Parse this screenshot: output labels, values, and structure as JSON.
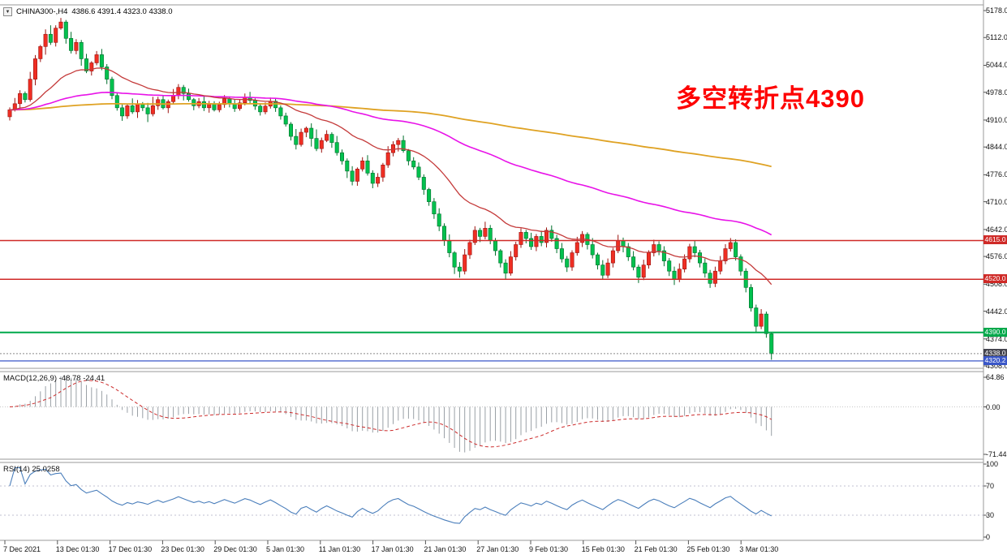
{
  "window": {
    "symbol_timeframe": "CHINA300-,H4",
    "ohlc": "4386.6 4391.4 4323.0 4338.0",
    "dropdown_glyph": "▼"
  },
  "annotation": {
    "text": "多空转折点4390",
    "color": "#fe0000"
  },
  "price_axis": {
    "labels": [
      "5178.0",
      "5112.0",
      "5044.0",
      "4978.0",
      "4910.0",
      "4844.0",
      "4776.0",
      "4710.0",
      "4642.0",
      "4576.0",
      "4508.0",
      "4442.0",
      "4374.0",
      "4308.0"
    ]
  },
  "price_tags": [
    {
      "label": "4615.0",
      "value": 4615.0,
      "color": "#cf2a27"
    },
    {
      "label": "4520.0",
      "value": 4520.0,
      "color": "#cf2a27"
    },
    {
      "label": "4390.0",
      "value": 4390.0,
      "color": "#00a84a"
    },
    {
      "label": "4338.0",
      "value": 4338.0,
      "color": "#45454f"
    },
    {
      "label": "4320.2",
      "value": 4320.2,
      "color": "#3a57c8"
    }
  ],
  "hlines": [
    {
      "price": 4615.0,
      "color": "#cf2a27",
      "width": 1.5,
      "dash": ""
    },
    {
      "price": 4520.0,
      "color": "#cf2a27",
      "width": 1.5,
      "dash": ""
    },
    {
      "price": 4390.0,
      "color": "#00a84a",
      "width": 2,
      "dash": ""
    },
    {
      "price": 4338.0,
      "color": "#8a8a8a",
      "width": 1,
      "dash": "2,2"
    },
    {
      "price": 4320.2,
      "color": "#3a57c8",
      "width": 1.3,
      "dash": ""
    }
  ],
  "panels": {
    "macd": {
      "label": "MACD(12,26,9)",
      "values": "-48.78 -24.41",
      "axis": [
        "64.86",
        "0.00",
        "-71.44"
      ]
    },
    "rsi": {
      "label": "RSI(14)",
      "value": "25.0258",
      "axis": [
        "100",
        "70",
        "30",
        "0"
      ],
      "levels": [
        70,
        30
      ]
    }
  },
  "time_axis": {
    "labels": [
      "7 Dec 2021",
      "13 Dec 01:30",
      "17 Dec 01:30",
      "23 Dec 01:30",
      "29 Dec 01:30",
      "5 Jan 01:30",
      "11 Jan 01:30",
      "17 Jan 01:30",
      "21 Jan 01:30",
      "27 Jan 01:30",
      "9 Feb 01:30",
      "15 Feb 01:30",
      "21 Feb 01:30",
      "25 Feb 01:30",
      "3 Mar 01:30"
    ]
  },
  "chart_data": {
    "type": "candlestick",
    "symbol": "CHINA300-",
    "timeframe": "H4",
    "price_range": [
      4302,
      5192
    ],
    "up_color": "#ef2e23",
    "up_stroke": "#9c1410",
    "down_color": "#00c14e",
    "down_stroke": "#00702c",
    "moving_averages": [
      {
        "type": "EMA",
        "period": 24,
        "color": "#c43a3a",
        "width": 1.3
      },
      {
        "type": "EMA",
        "period": 90,
        "color": "#e813e8",
        "width": 1.6
      },
      {
        "type": "EMA",
        "period": 300,
        "color": "#dfa223",
        "width": 1.8
      }
    ],
    "candles": [
      [
        4918,
        4941,
        4909,
        4935
      ],
      [
        4935,
        4964,
        4931,
        4950
      ],
      [
        4950,
        4983,
        4938,
        4975
      ],
      [
        4975,
        4980,
        4953,
        4960
      ],
      [
        4960,
        5028,
        4955,
        5010
      ],
      [
        5010,
        5069,
        4995,
        5060
      ],
      [
        5060,
        5094,
        5052,
        5090
      ],
      [
        5090,
        5132,
        5070,
        5120
      ],
      [
        5120,
        5142,
        5094,
        5100
      ],
      [
        5100,
        5142,
        5090,
        5135
      ],
      [
        5135,
        5160,
        5131,
        5150
      ],
      [
        5150,
        5155,
        5097,
        5110
      ],
      [
        5110,
        5126,
        5073,
        5080
      ],
      [
        5080,
        5108,
        5071,
        5100
      ],
      [
        5100,
        5106,
        5043,
        5060
      ],
      [
        5060,
        5072,
        5025,
        5030
      ],
      [
        5030,
        5054,
        5019,
        5050
      ],
      [
        5050,
        5079,
        5044,
        5070
      ],
      [
        5070,
        5084,
        5032,
        5040
      ],
      [
        5040,
        5047,
        4998,
        5010
      ],
      [
        5010,
        5016,
        4961,
        4970
      ],
      [
        4970,
        4976,
        4933,
        4940
      ],
      [
        4940,
        4948,
        4908,
        4920
      ],
      [
        4920,
        4950,
        4913,
        4945
      ],
      [
        4945,
        4963,
        4925,
        4930
      ],
      [
        4930,
        4959,
        4915,
        4950
      ],
      [
        4950,
        4954,
        4932,
        4940
      ],
      [
        4940,
        4952,
        4905,
        4925
      ],
      [
        4925,
        4967,
        4919,
        4945
      ],
      [
        4945,
        4967,
        4935,
        4960
      ],
      [
        4960,
        4970,
        4936,
        4940
      ],
      [
        4940,
        4960,
        4927,
        4955
      ],
      [
        4955,
        4986,
        4948,
        4970
      ],
      [
        4970,
        4998,
        4961,
        4990
      ],
      [
        4990,
        4996,
        4958,
        4975
      ],
      [
        4975,
        4987,
        4955,
        4960
      ],
      [
        4960,
        4964,
        4934,
        4945
      ],
      [
        4945,
        4964,
        4939,
        4955
      ],
      [
        4955,
        4969,
        4932,
        4940
      ],
      [
        4940,
        4957,
        4928,
        4950
      ],
      [
        4950,
        4956,
        4931,
        4935
      ],
      [
        4935,
        4955,
        4929,
        4948
      ],
      [
        4948,
        4971,
        4940,
        4962
      ],
      [
        4962,
        4968,
        4941,
        4950
      ],
      [
        4950,
        4961,
        4930,
        4938
      ],
      [
        4938,
        4960,
        4933,
        4952
      ],
      [
        4952,
        4975,
        4946,
        4966
      ],
      [
        4966,
        4979,
        4950,
        4958
      ],
      [
        4958,
        4963,
        4935,
        4944
      ],
      [
        4944,
        4951,
        4921,
        4930
      ],
      [
        4930,
        4953,
        4924,
        4944
      ],
      [
        4944,
        4965,
        4938,
        4956
      ],
      [
        4956,
        4962,
        4930,
        4940
      ],
      [
        4940,
        4946,
        4911,
        4920
      ],
      [
        4920,
        4928,
        4894,
        4900
      ],
      [
        4900,
        4905,
        4860,
        4870
      ],
      [
        4870,
        4888,
        4838,
        4850
      ],
      [
        4850,
        4889,
        4845,
        4880
      ],
      [
        4880,
        4894,
        4868,
        4890
      ],
      [
        4890,
        4902,
        4845,
        4865
      ],
      [
        4865,
        4887,
        4834,
        4840
      ],
      [
        4840,
        4867,
        4830,
        4860
      ],
      [
        4860,
        4885,
        4856,
        4875
      ],
      [
        4875,
        4880,
        4842,
        4855
      ],
      [
        4855,
        4871,
        4823,
        4830
      ],
      [
        4830,
        4838,
        4801,
        4810
      ],
      [
        4810,
        4816,
        4768,
        4785
      ],
      [
        4785,
        4797,
        4750,
        4760
      ],
      [
        4760,
        4794,
        4749,
        4790
      ],
      [
        4790,
        4819,
        4784,
        4810
      ],
      [
        4810,
        4824,
        4774,
        4780
      ],
      [
        4780,
        4787,
        4743,
        4755
      ],
      [
        4755,
        4780,
        4746,
        4770
      ],
      [
        4770,
        4805,
        4759,
        4800
      ],
      [
        4800,
        4846,
        4793,
        4830
      ],
      [
        4830,
        4858,
        4821,
        4850
      ],
      [
        4850,
        4866,
        4833,
        4860
      ],
      [
        4860,
        4872,
        4830,
        4835
      ],
      [
        4835,
        4839,
        4799,
        4810
      ],
      [
        4810,
        4819,
        4789,
        4795
      ],
      [
        4795,
        4806,
        4763,
        4770
      ],
      [
        4770,
        4777,
        4727,
        4740
      ],
      [
        4740,
        4744,
        4700,
        4710
      ],
      [
        4710,
        4719,
        4668,
        4680
      ],
      [
        4680,
        4694,
        4638,
        4650
      ],
      [
        4650,
        4657,
        4602,
        4615
      ],
      [
        4615,
        4630,
        4574,
        4585
      ],
      [
        4585,
        4589,
        4533,
        4550
      ],
      [
        4550,
        4562,
        4524,
        4540
      ],
      [
        4540,
        4594,
        4532,
        4580
      ],
      [
        4580,
        4617,
        4570,
        4610
      ],
      [
        4610,
        4650,
        4604,
        4640
      ],
      [
        4640,
        4646,
        4611,
        4625
      ],
      [
        4625,
        4661,
        4618,
        4645
      ],
      [
        4645,
        4653,
        4606,
        4615
      ],
      [
        4615,
        4621,
        4578,
        4590
      ],
      [
        4590,
        4594,
        4549,
        4560
      ],
      [
        4560,
        4569,
        4521,
        4535
      ],
      [
        4535,
        4589,
        4529,
        4575
      ],
      [
        4575,
        4612,
        4566,
        4605
      ],
      [
        4605,
        4645,
        4597,
        4635
      ],
      [
        4635,
        4641,
        4608,
        4620
      ],
      [
        4620,
        4634,
        4592,
        4600
      ],
      [
        4600,
        4631,
        4589,
        4625
      ],
      [
        4625,
        4639,
        4601,
        4610
      ],
      [
        4610,
        4647,
        4598,
        4640
      ],
      [
        4640,
        4652,
        4612,
        4620
      ],
      [
        4620,
        4629,
        4584,
        4595
      ],
      [
        4595,
        4609,
        4561,
        4570
      ],
      [
        4570,
        4577,
        4538,
        4550
      ],
      [
        4550,
        4591,
        4541,
        4585
      ],
      [
        4585,
        4624,
        4578,
        4610
      ],
      [
        4610,
        4638,
        4599,
        4630
      ],
      [
        4630,
        4635,
        4593,
        4605
      ],
      [
        4605,
        4621,
        4571,
        4580
      ],
      [
        4580,
        4585,
        4544,
        4555
      ],
      [
        4555,
        4567,
        4519,
        4530
      ],
      [
        4530,
        4571,
        4523,
        4560
      ],
      [
        4560,
        4597,
        4549,
        4590
      ],
      [
        4590,
        4629,
        4584,
        4615
      ],
      [
        4615,
        4622,
        4586,
        4600
      ],
      [
        4600,
        4609,
        4565,
        4575
      ],
      [
        4575,
        4589,
        4542,
        4550
      ],
      [
        4550,
        4556,
        4511,
        4525
      ],
      [
        4525,
        4568,
        4518,
        4555
      ],
      [
        4555,
        4591,
        4546,
        4585
      ],
      [
        4585,
        4617,
        4576,
        4605
      ],
      [
        4605,
        4613,
        4579,
        4590
      ],
      [
        4590,
        4601,
        4552,
        4565
      ],
      [
        4565,
        4572,
        4528,
        4540
      ],
      [
        4540,
        4551,
        4506,
        4520
      ],
      [
        4520,
        4559,
        4513,
        4545
      ],
      [
        4545,
        4581,
        4537,
        4570
      ],
      [
        4570,
        4607,
        4561,
        4600
      ],
      [
        4600,
        4614,
        4574,
        4585
      ],
      [
        4585,
        4592,
        4549,
        4560
      ],
      [
        4560,
        4571,
        4524,
        4535
      ],
      [
        4535,
        4543,
        4499,
        4510
      ],
      [
        4510,
        4551,
        4501,
        4540
      ],
      [
        4540,
        4577,
        4532,
        4565
      ],
      [
        4565,
        4606,
        4557,
        4595
      ],
      [
        4595,
        4621,
        4588,
        4610
      ],
      [
        4610,
        4618,
        4566,
        4575
      ],
      [
        4575,
        4581,
        4529,
        4540
      ],
      [
        4540,
        4547,
        4488,
        4500
      ],
      [
        4500,
        4508,
        4441,
        4450
      ],
      [
        4450,
        4458,
        4391,
        4405
      ],
      [
        4405,
        4447,
        4398,
        4435
      ],
      [
        4435,
        4441,
        4377,
        4387
      ],
      [
        4386.6,
        4391.4,
        4323.0,
        4338.0
      ]
    ]
  }
}
